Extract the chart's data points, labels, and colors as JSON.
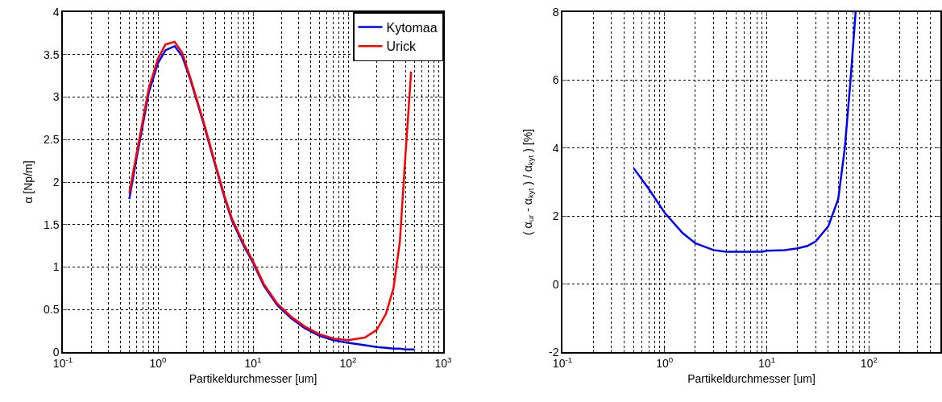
{
  "chart_data": [
    {
      "type": "line",
      "xlabel": "Partikeldurchmesser [um]",
      "ylabel": "α [Np/m]",
      "log": "x",
      "grid": true,
      "legend": "top right",
      "line_style": "solid",
      "marker": "none",
      "xlim": [
        0.1,
        1000
      ],
      "xticks": [
        {
          "value": 0.1,
          "label": "10$^{-1}$"
        },
        {
          "value": 1,
          "label": "10$^{0}$"
        },
        {
          "value": 10,
          "label": "10$^{1}$"
        },
        {
          "value": 100,
          "label": "10$^{2}$"
        },
        {
          "value": 1000,
          "label": "10$^{3}$"
        }
      ],
      "ylim": [
        0,
        4
      ],
      "yticks": [
        0,
        0.5,
        1,
        1.5,
        2,
        2.5,
        3,
        3.5,
        4
      ],
      "series": [
        {
          "name": "Kytomaa",
          "color": "#0000ff",
          "x": [
            0.5,
            0.6,
            0.7,
            0.8,
            1.0,
            1.2,
            1.5,
            1.8,
            2.2,
            3,
            4,
            5,
            6,
            8,
            10,
            13,
            18,
            25,
            35,
            50,
            70,
            100,
            150,
            200,
            250,
            300,
            350,
            400,
            500
          ],
          "values": [
            1.8,
            2.3,
            2.7,
            3.05,
            3.4,
            3.55,
            3.6,
            3.48,
            3.2,
            2.7,
            2.2,
            1.82,
            1.55,
            1.25,
            1.05,
            0.78,
            0.55,
            0.4,
            0.28,
            0.19,
            0.14,
            0.11,
            0.08,
            0.06,
            0.05,
            0.04,
            0.04,
            0.03,
            0.03
          ]
        },
        {
          "name": "Urick",
          "color": "#ff0000",
          "x": [
            0.5,
            0.6,
            0.7,
            0.8,
            1.0,
            1.2,
            1.5,
            1.8,
            2.2,
            3,
            4,
            5,
            6,
            8,
            10,
            13,
            18,
            25,
            35,
            50,
            70,
            100,
            150,
            200,
            250,
            300,
            350,
            400,
            460
          ],
          "values": [
            1.87,
            2.35,
            2.75,
            3.1,
            3.45,
            3.62,
            3.65,
            3.52,
            3.22,
            2.72,
            2.22,
            1.84,
            1.57,
            1.27,
            1.07,
            0.8,
            0.57,
            0.42,
            0.3,
            0.21,
            0.16,
            0.14,
            0.17,
            0.26,
            0.45,
            0.75,
            1.3,
            2.3,
            3.3
          ]
        }
      ]
    },
    {
      "type": "line",
      "xlabel": "Partikeldurchmesser [um]",
      "ylabel": "( α$_{ur}$ - α$_{kyt}$ ) / α$_{kyt}$ ) [%]",
      "log": "x",
      "grid": true,
      "line_style": "solid",
      "marker": "none",
      "xlim": [
        0.1,
        500
      ],
      "xticks": [
        {
          "value": 0.1,
          "label": "10$^{-1}$"
        },
        {
          "value": 1,
          "label": "10$^{0}$"
        },
        {
          "value": 10,
          "label": "10$^{1}$"
        },
        {
          "value": 100,
          "label": "10$^{2}$"
        }
      ],
      "ylim": [
        -2,
        8
      ],
      "yticks": [
        -2,
        0,
        2,
        4,
        6,
        8
      ],
      "series": [
        {
          "color": "#0000ff",
          "x": [
            0.5,
            0.7,
            1.0,
            1.5,
            2,
            3,
            4,
            6,
            9,
            10,
            15,
            20,
            25,
            30,
            40,
            50,
            58,
            66,
            74
          ],
          "values": [
            3.4,
            2.8,
            2.1,
            1.5,
            1.2,
            1.0,
            0.95,
            0.95,
            0.95,
            0.98,
            1.0,
            1.05,
            1.12,
            1.25,
            1.7,
            2.5,
            4.0,
            6.0,
            8.0
          ]
        }
      ]
    }
  ]
}
